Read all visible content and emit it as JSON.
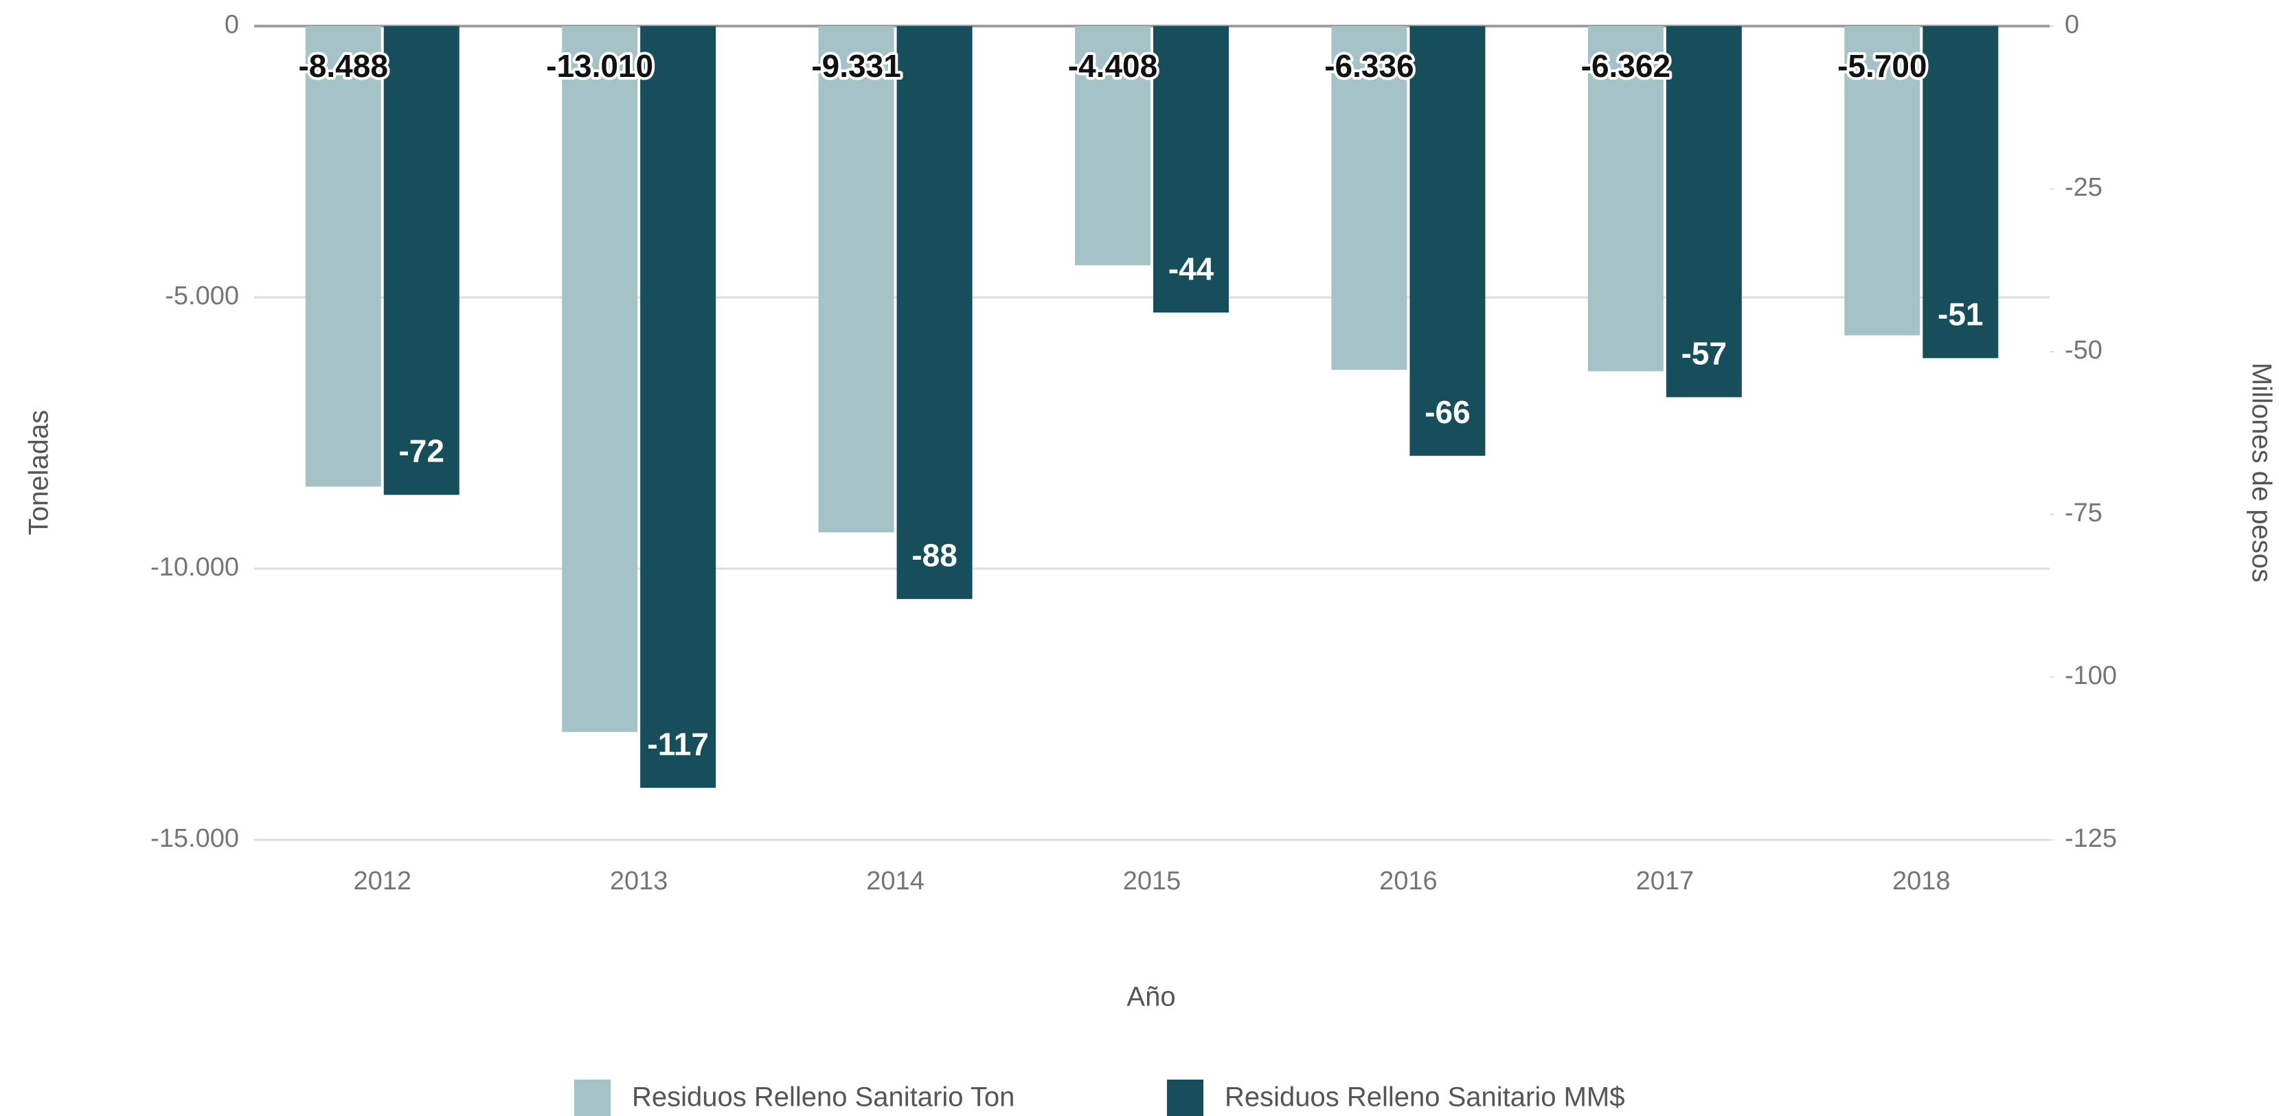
{
  "chart_data": {
    "type": "bar",
    "x_label": "Año",
    "y_label": "Toneladas",
    "y2_label": "Millones de pesos",
    "categories": [
      "2012",
      "2013",
      "2014",
      "2015",
      "2016",
      "2017",
      "2018"
    ],
    "series": [
      {
        "name": "Residuos Relleno Sanitario Ton",
        "color": "#a5c3c7",
        "values": [
          -8488,
          -13010,
          -9331,
          -4408,
          -6336,
          -6362,
          -5700
        ],
        "value_labels": [
          "-8.488",
          "-13.010",
          "-9.331",
          "-4.408",
          "-6.336",
          "-6.362",
          "-5.700"
        ]
      },
      {
        "name": "Residuos Relleno Sanitario MM$",
        "color": "#164e5b",
        "axis": "y2",
        "values": [
          -72,
          -117,
          -88,
          -44,
          -66,
          -57,
          -51
        ]
      }
    ],
    "ylim": [
      -15000,
      0
    ],
    "yticks": [
      {
        "value": 0,
        "label": "0"
      },
      {
        "value": -5000,
        "label": "-5.000"
      },
      {
        "value": -10000,
        "label": "-10.000"
      },
      {
        "value": -15000,
        "label": "-15.000"
      }
    ],
    "y2lim": [
      -125,
      0
    ],
    "y2ticks": [
      0,
      -25,
      -50,
      -75,
      -100,
      -125
    ],
    "grid": true,
    "legend": "bottom"
  }
}
